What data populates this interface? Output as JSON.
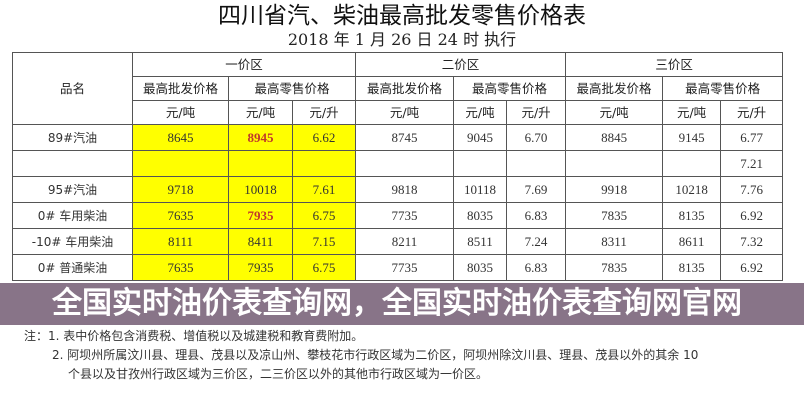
{
  "title": "四川省汽、柴油最高批发零售价格表",
  "subtitle": "2018 年 1 月 26 日 24 时 执行",
  "table": {
    "name_header": "品名",
    "zones": [
      "一价区",
      "二价区",
      "三价区"
    ],
    "wholesale_label": "最高批发价格",
    "retail_label": "最高零售价格",
    "unit_ton": "元/吨",
    "unit_liter": "元/升",
    "rows": [
      {
        "name": "89#汽油",
        "cells": [
          "8645",
          "8945",
          "6.62",
          "8745",
          "9045",
          "6.70",
          "8845",
          "9145",
          "6.77"
        ]
      },
      {
        "name": "",
        "cells": [
          "",
          "",
          "",
          "",
          "",
          "",
          "",
          "",
          "7.21"
        ]
      },
      {
        "name": "95#汽油",
        "cells": [
          "9718",
          "10018",
          "7.61",
          "9818",
          "10118",
          "7.69",
          "9918",
          "10218",
          "7.76"
        ]
      },
      {
        "name": "0# 车用柴油",
        "cells": [
          "7635",
          "7935",
          "6.75",
          "7735",
          "8035",
          "6.83",
          "7835",
          "8135",
          "6.92"
        ]
      },
      {
        "name": "-10# 车用柴油",
        "cells": [
          "8111",
          "8411",
          "7.15",
          "8211",
          "8511",
          "7.24",
          "8311",
          "8611",
          "7.32"
        ]
      },
      {
        "name": "0# 普通柴油",
        "cells": [
          "7635",
          "7935",
          "6.75",
          "7735",
          "8035",
          "6.83",
          "7835",
          "8135",
          "6.92"
        ]
      }
    ],
    "highlight_color": "#ffff00",
    "emphasis_color": "#c0392b"
  },
  "notes": [
    "注：1. 表中价格包含消费税、增值税以及城建税和教育费附加。",
    "2. 阿坝州所属汶川县、理县、茂县以及凉山州、攀枝花市行政区域为二价区，阿坝州除汶川县、理县、茂县以外的其余 10",
    "个县以及甘孜州行政区域为三价区，二三价区以外的其他市行政区域为一价区。"
  ],
  "banner": "全国实时油价表查询网，全国实时油价表查询网官网"
}
